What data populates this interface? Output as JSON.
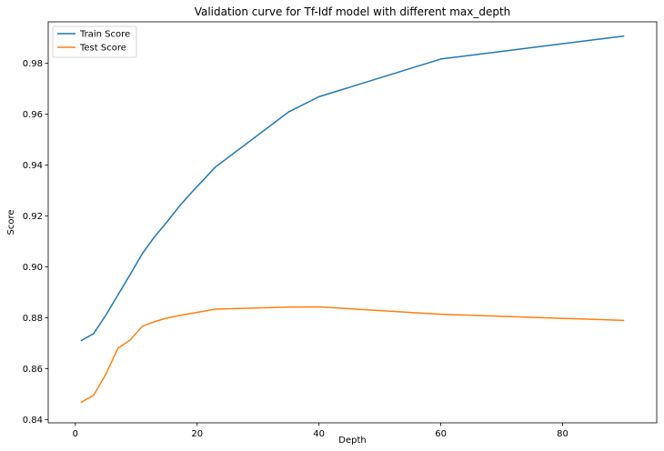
{
  "chart_data": {
    "type": "line",
    "title": "Validation curve for Tf-Idf model with different max_depth",
    "xlabel": "Depth",
    "ylabel": "Score",
    "xlim": [
      -4.45,
      95.45
    ],
    "ylim": [
      0.8388,
      0.9962
    ],
    "xticks": [
      0,
      20,
      40,
      60,
      80
    ],
    "yticks": [
      0.84,
      0.86,
      0.88,
      0.9,
      0.92,
      0.94,
      0.96,
      0.98
    ],
    "ytick_labels": [
      "0.84",
      "0.86",
      "0.88",
      "0.90",
      "0.92",
      "0.94",
      "0.96",
      "0.98"
    ],
    "grid": false,
    "legend_position": "top-left",
    "x": [
      1,
      3,
      5,
      7,
      9,
      11,
      13,
      15,
      17,
      19,
      23,
      35,
      40,
      60,
      90
    ],
    "series": [
      {
        "name": "Train Score",
        "color": "#1f77b4",
        "values": [
          0.8711,
          0.8738,
          0.881,
          0.889,
          0.897,
          0.9052,
          0.9118,
          0.9175,
          0.9236,
          0.929,
          0.9392,
          0.9608,
          0.9668,
          0.9816,
          0.9906
        ]
      },
      {
        "name": "Test Score",
        "color": "#ff7f0e",
        "values": [
          0.8469,
          0.8496,
          0.8578,
          0.8681,
          0.8713,
          0.8767,
          0.8785,
          0.8799,
          0.8809,
          0.8817,
          0.8834,
          0.8842,
          0.8843,
          0.8814,
          0.879
        ]
      }
    ]
  }
}
